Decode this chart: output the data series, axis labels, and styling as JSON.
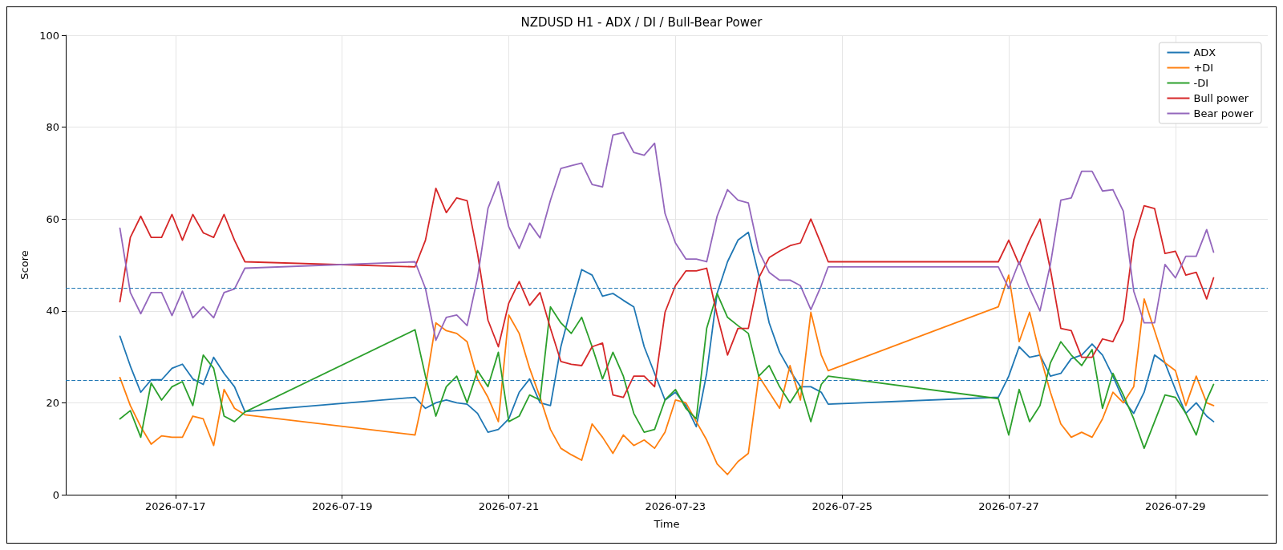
{
  "chart_data": {
    "type": "line",
    "title": "NZDUSD H1 - ADX / DI / Bull-Bear Power",
    "xlabel": "Time",
    "ylabel": "Score",
    "x": [
      "2026-07-16T08:00",
      "2026-07-16T11:00",
      "2026-07-16T14:00",
      "2026-07-16T17:00",
      "2026-07-16T20:00",
      "2026-07-16T23:00",
      "2026-07-17T02:00",
      "2026-07-17T05:00",
      "2026-07-17T08:00",
      "2026-07-17T11:00",
      "2026-07-17T14:00",
      "2026-07-17T17:00",
      "2026-07-17T20:00",
      "2026-07-19T21:00",
      "2026-07-20T00:00",
      "2026-07-20T03:00",
      "2026-07-20T06:00",
      "2026-07-20T09:00",
      "2026-07-20T12:00",
      "2026-07-20T15:00",
      "2026-07-20T18:00",
      "2026-07-20T21:00",
      "2026-07-21T00:00",
      "2026-07-21T03:00",
      "2026-07-21T06:00",
      "2026-07-21T09:00",
      "2026-07-21T12:00",
      "2026-07-21T15:00",
      "2026-07-21T18:00",
      "2026-07-21T21:00",
      "2026-07-22T00:00",
      "2026-07-22T03:00",
      "2026-07-22T06:00",
      "2026-07-22T09:00",
      "2026-07-22T12:00",
      "2026-07-22T15:00",
      "2026-07-22T18:00",
      "2026-07-22T21:00",
      "2026-07-23T00:00",
      "2026-07-23T03:00",
      "2026-07-23T06:00",
      "2026-07-23T09:00",
      "2026-07-23T12:00",
      "2026-07-23T15:00",
      "2026-07-23T18:00",
      "2026-07-23T21:00",
      "2026-07-24T00:00",
      "2026-07-24T03:00",
      "2026-07-24T06:00",
      "2026-07-24T09:00",
      "2026-07-24T12:00",
      "2026-07-24T15:00",
      "2026-07-24T18:00",
      "2026-07-24T20:00",
      "2026-07-26T21:00",
      "2026-07-27T00:00",
      "2026-07-27T03:00",
      "2026-07-27T06:00",
      "2026-07-27T09:00",
      "2026-07-27T12:00",
      "2026-07-27T15:00",
      "2026-07-27T18:00",
      "2026-07-27T21:00",
      "2026-07-28T00:00",
      "2026-07-28T03:00",
      "2026-07-28T06:00",
      "2026-07-28T09:00",
      "2026-07-28T12:00",
      "2026-07-28T15:00",
      "2026-07-28T18:00",
      "2026-07-28T21:00",
      "2026-07-29T00:00",
      "2026-07-29T03:00",
      "2026-07-29T06:00",
      "2026-07-29T09:00",
      "2026-07-29T11:00"
    ],
    "series": [
      {
        "name": "ADX",
        "color": "#1f77b4",
        "values": [
          34.5,
          28,
          22.3,
          25,
          25,
          27.5,
          28.4,
          25.2,
          24,
          29.9,
          26.4,
          23.5,
          18.1,
          21.2,
          18.8,
          20,
          20.6,
          20,
          19.7,
          17.7,
          13.6,
          14.2,
          16.5,
          22.3,
          25.2,
          20,
          19.4,
          32.2,
          40.9,
          49,
          47.8,
          43.2,
          43.8,
          42.3,
          40.9,
          32.2,
          26.4,
          20.6,
          22.3,
          19.4,
          14.8,
          26.4,
          43.8,
          50.7,
          55.4,
          57.1,
          47.8,
          37.4,
          31,
          27,
          23.5,
          23.5,
          22.3,
          19.7,
          21.2,
          25.8,
          32.2,
          29.9,
          30.4,
          25.8,
          26.4,
          29.6,
          30.4,
          32.8,
          30.4,
          25.8,
          20.6,
          17.7,
          22.3,
          30.4,
          28.7,
          22.9,
          17.7,
          20,
          17.1,
          15.9
        ]
      },
      {
        "name": "+DI",
        "color": "#ff7f0e",
        "values": [
          25.5,
          19.4,
          14.8,
          11,
          12.8,
          12.5,
          12.5,
          17.1,
          16.5,
          10.7,
          22.9,
          18.8,
          17.4,
          13,
          23.5,
          37.4,
          35.7,
          35.1,
          33.3,
          25.2,
          21.2,
          15.9,
          39.1,
          35.1,
          27.5,
          21.2,
          14.2,
          10.1,
          8.7,
          7.5,
          15.4,
          12.5,
          9,
          13,
          10.7,
          11.9,
          10.1,
          13.6,
          20.6,
          20,
          15.9,
          11.9,
          6.7,
          4.4,
          7.2,
          9,
          25.8,
          22.3,
          18.8,
          28.1,
          20.6,
          39.7,
          30.4,
          27,
          40.9,
          47.8,
          33.3,
          39.7,
          30.4,
          22.3,
          15.4,
          12.5,
          13.6,
          12.5,
          16.5,
          22.3,
          20,
          23.5,
          42.6,
          35.7,
          28.7,
          27,
          19.4,
          25.8,
          20,
          19.4
        ]
      },
      {
        "name": "-DI",
        "color": "#2ca02c",
        "values": [
          16.5,
          18.3,
          12.5,
          24.3,
          20.6,
          23.5,
          24.6,
          19.4,
          30.4,
          27.5,
          17.1,
          15.9,
          18,
          35.9,
          25.8,
          17.1,
          23.5,
          25.8,
          20,
          27,
          23.5,
          31,
          15.9,
          17.1,
          21.7,
          20.6,
          40.9,
          37.4,
          35.1,
          38.6,
          32.2,
          25.2,
          31,
          25.8,
          17.7,
          13.6,
          14.2,
          20.6,
          22.9,
          18.8,
          16.5,
          36.2,
          43.8,
          38.6,
          36.8,
          35.1,
          25.8,
          28.1,
          23.5,
          20,
          23.5,
          15.9,
          24,
          25.8,
          20.9,
          13,
          22.9,
          15.9,
          19.4,
          28.7,
          33.3,
          30.4,
          28.1,
          31.6,
          18.8,
          26.4,
          21.7,
          16.5,
          10.1,
          15.9,
          21.7,
          21.2,
          17.7,
          13,
          20.6,
          24
        ]
      },
      {
        "name": "Bull power",
        "color": "#d62728",
        "values": [
          42,
          56,
          60.6,
          56,
          56,
          61,
          55.4,
          61,
          57,
          56,
          61,
          55.4,
          50.7,
          49.6,
          55.4,
          66.7,
          61.4,
          64.6,
          64,
          52.5,
          38,
          32.2,
          41.7,
          46.4,
          41.2,
          44,
          36.2,
          29,
          28.4,
          28.1,
          32.2,
          33,
          21.7,
          21.2,
          25.8,
          25.8,
          23.5,
          39.7,
          45.5,
          48.7,
          48.7,
          49.3,
          39.1,
          30.4,
          36.2,
          36.2,
          47.2,
          51.6,
          53,
          54.2,
          54.8,
          60,
          54.5,
          50.7,
          50.7,
          55.4,
          50.1,
          55.4,
          60,
          49,
          36.2,
          35.7,
          29.9,
          29.9,
          33.9,
          33.3,
          38,
          55.4,
          62.9,
          62.3,
          52.5,
          53,
          47.8,
          48.4,
          42.6,
          47.2
        ]
      },
      {
        "name": "Bear power",
        "color": "#9467bd",
        "values": [
          58,
          44,
          39.4,
          44,
          44,
          39,
          44.3,
          38.5,
          40.9,
          38.5,
          44,
          44.8,
          49.3,
          50.7,
          44.9,
          33.6,
          38.6,
          39.1,
          36.8,
          47.2,
          62.3,
          68.1,
          58.3,
          53.6,
          59.1,
          55.9,
          64.1,
          71,
          71.6,
          72.2,
          67.5,
          67,
          78.3,
          78.8,
          74.5,
          73.9,
          76.5,
          61.2,
          54.8,
          51.3,
          51.3,
          50.7,
          60.6,
          66.4,
          64.1,
          63.5,
          53,
          48.4,
          46.7,
          46.7,
          45.5,
          40.3,
          45.5,
          49.6,
          49.6,
          44.9,
          50.7,
          44.9,
          40,
          50.1,
          64.1,
          64.6,
          70.4,
          70.4,
          66.1,
          66.4,
          61.7,
          44.3,
          37.4,
          37.4,
          50.1,
          47.2,
          51.9,
          51.9,
          57.7,
          52.8
        ]
      }
    ],
    "xlim": [
      "2026-07-15T16:24",
      "2026-07-30T02:36"
    ],
    "xticks": [
      "2026-07-17",
      "2026-07-19",
      "2026-07-21",
      "2026-07-23",
      "2026-07-25",
      "2026-07-27",
      "2026-07-29"
    ],
    "ylim": [
      0,
      100
    ],
    "yticks": [
      0,
      20,
      40,
      60,
      80,
      100
    ],
    "ref_lines": [
      {
        "axis": "y",
        "value": 45,
        "color": "#1f77b4",
        "line_style": "dashed"
      },
      {
        "axis": "y",
        "value": 25,
        "color": "#1f77b4",
        "line_style": "dashed"
      }
    ],
    "grid": true,
    "legend": "top right",
    "marker": "none",
    "line_style": "solid"
  }
}
